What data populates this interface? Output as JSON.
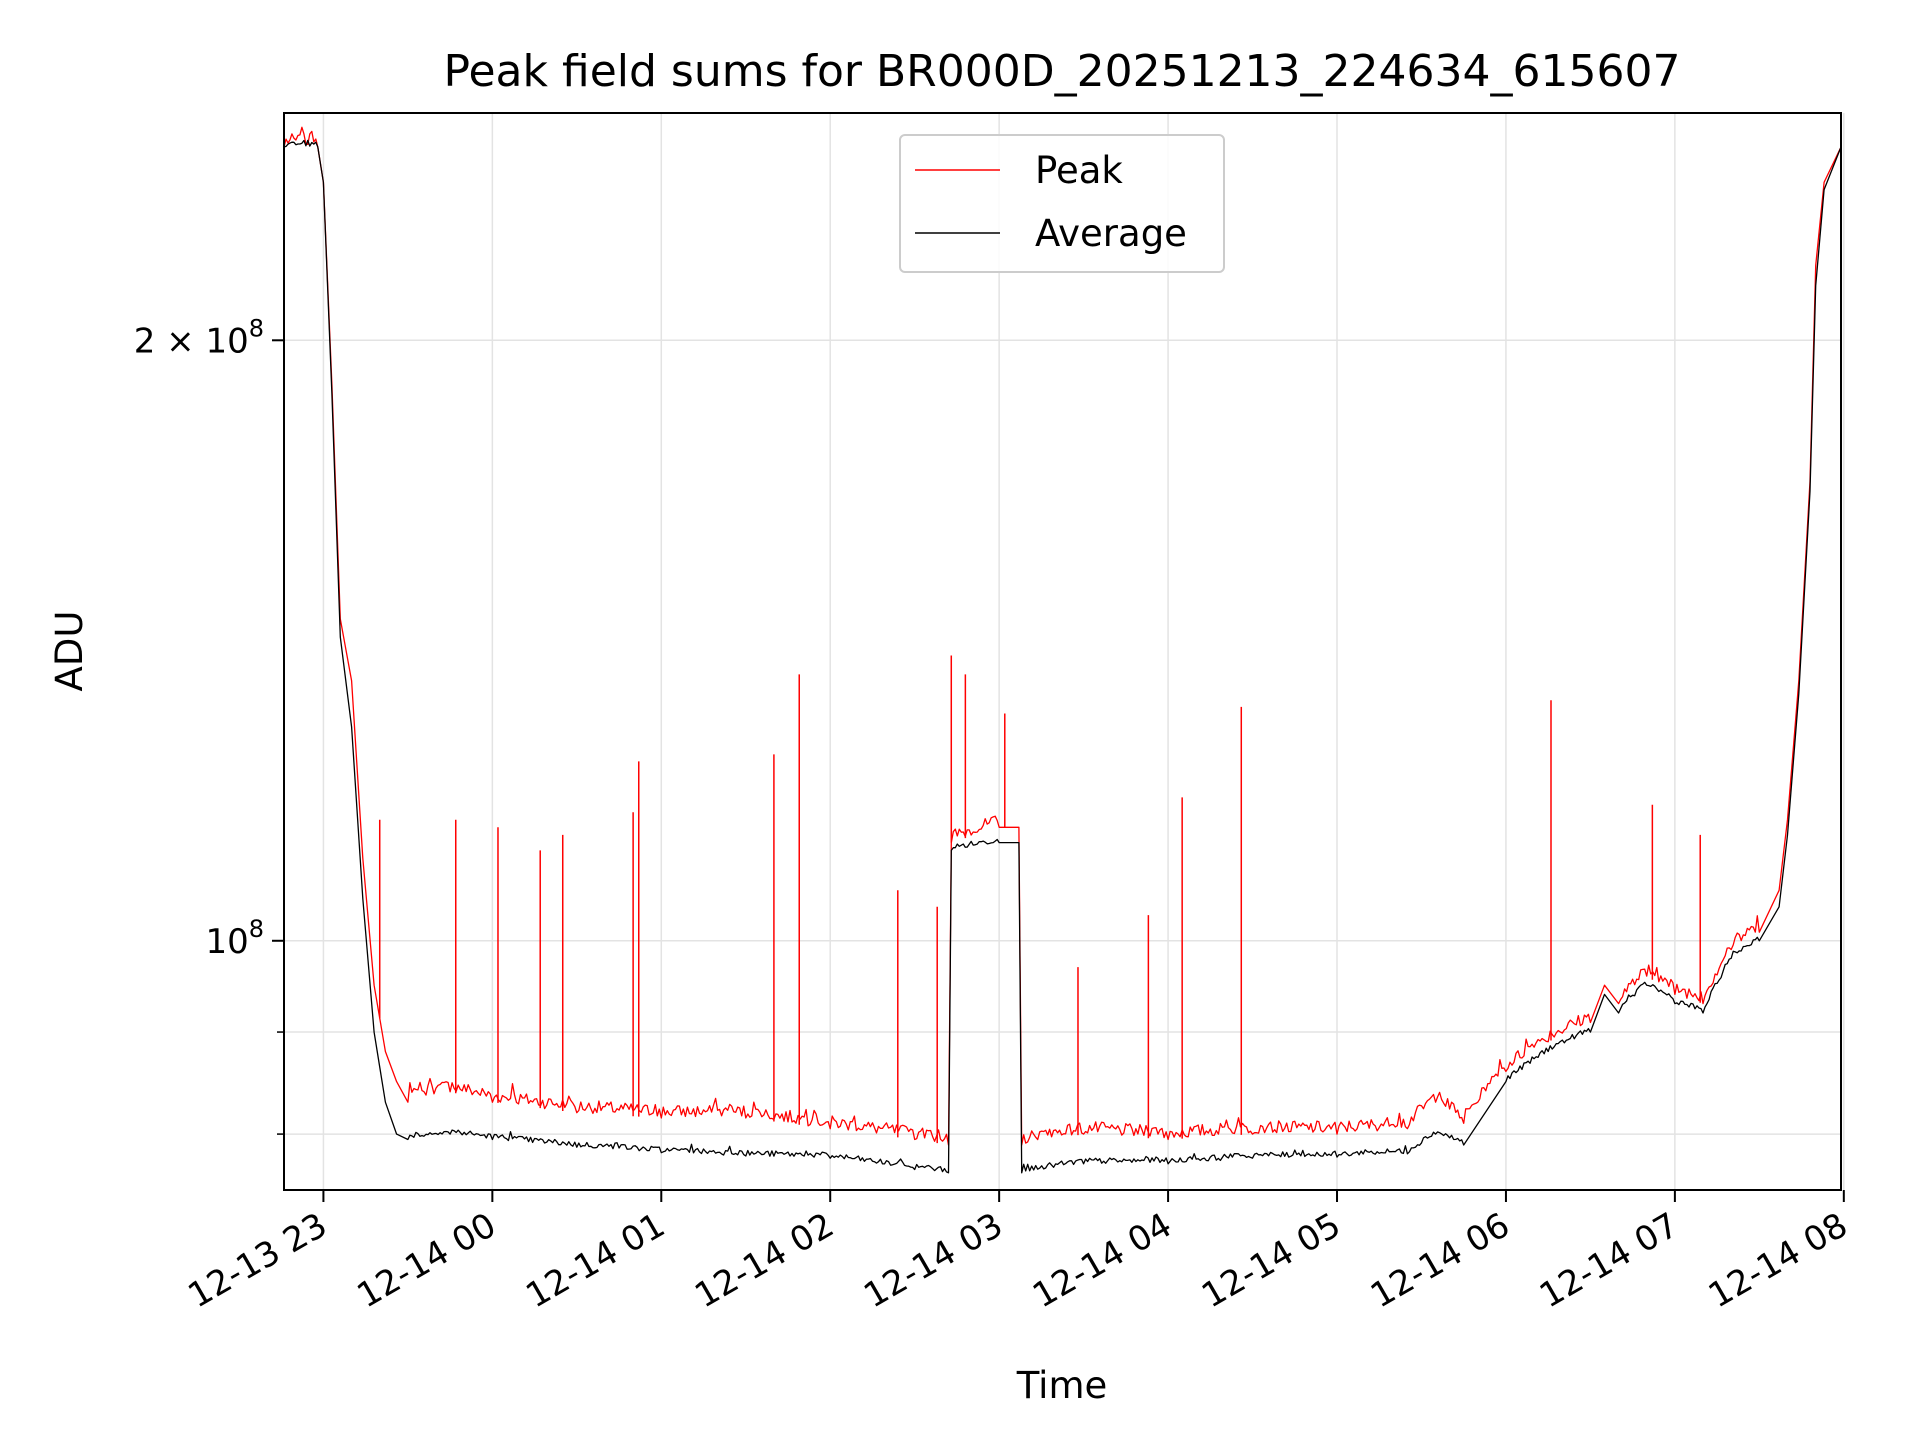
{
  "chart_data": {
    "type": "line",
    "title": "Peak field sums for BR000D_20251213_224634_615607",
    "xlabel": "Time",
    "ylabel": "ADU",
    "y_scale": "log",
    "ylim": [
      75000000,
      260000000
    ],
    "xlim": [
      "2025-12-13 22:46",
      "2025-12-14 07:59"
    ],
    "grid": true,
    "legend_position": "top-center",
    "x_ticks": [
      {
        "t": "2025-12-13 23:00",
        "label": "12-13 23"
      },
      {
        "t": "2025-12-14 00:00",
        "label": "12-14 00"
      },
      {
        "t": "2025-12-14 01:00",
        "label": "12-14 01"
      },
      {
        "t": "2025-12-14 02:00",
        "label": "12-14 02"
      },
      {
        "t": "2025-12-14 03:00",
        "label": "12-14 03"
      },
      {
        "t": "2025-12-14 04:00",
        "label": "12-14 04"
      },
      {
        "t": "2025-12-14 05:00",
        "label": "12-14 05"
      },
      {
        "t": "2025-12-14 06:00",
        "label": "12-14 06"
      },
      {
        "t": "2025-12-14 07:00",
        "label": "12-14 07"
      },
      {
        "t": "2025-12-14 08:00",
        "label": "12-14 08"
      }
    ],
    "y_major_ticks": [
      {
        "value": 100000000,
        "base": "10",
        "exp": "8",
        "coef": ""
      },
      {
        "value": 200000000,
        "base": "10",
        "exp": "8",
        "coef": "2 × "
      }
    ],
    "y_minor_ticks": [
      80000000,
      90000000
    ],
    "series": [
      {
        "name": "Peak",
        "color": "#ff0000",
        "points": [
          [
            "2025-12-13 22:46",
            250000000
          ],
          [
            "2025-12-13 22:58",
            250000000
          ],
          [
            "2025-12-13 23:00",
            240000000
          ],
          [
            "2025-12-13 23:03",
            190000000
          ],
          [
            "2025-12-13 23:06",
            145000000
          ],
          [
            "2025-12-13 23:10",
            135000000
          ],
          [
            "2025-12-13 23:14",
            110000000
          ],
          [
            "2025-12-13 23:18",
            95000000
          ],
          [
            "2025-12-13 23:22",
            88000000
          ],
          [
            "2025-12-13 23:26",
            85000000
          ],
          [
            "2025-12-13 23:30",
            83000000
          ],
          [
            "2025-12-13 23:45",
            84000000
          ],
          [
            "2025-12-14 00:00",
            83000000
          ],
          [
            "2025-12-14 00:30",
            82000000
          ],
          [
            "2025-12-14 01:00",
            81500000
          ],
          [
            "2025-12-14 01:30",
            81500000
          ],
          [
            "2025-12-14 02:00",
            80500000
          ],
          [
            "2025-12-14 02:30",
            79500000
          ],
          [
            "2025-12-14 02:42",
            79000000
          ],
          [
            "2025-12-14 02:43",
            112000000
          ],
          [
            "2025-12-14 03:00",
            114000000
          ],
          [
            "2025-12-14 03:07",
            114000000
          ],
          [
            "2025-12-14 03:08",
            79000000
          ],
          [
            "2025-12-14 03:30",
            80000000
          ],
          [
            "2025-12-14 04:00",
            79500000
          ],
          [
            "2025-12-14 04:30",
            80000000
          ],
          [
            "2025-12-14 05:00",
            80000000
          ],
          [
            "2025-12-14 05:25",
            80500000
          ],
          [
            "2025-12-14 05:35",
            83000000
          ],
          [
            "2025-12-14 05:45",
            81000000
          ],
          [
            "2025-12-14 06:00",
            86000000
          ],
          [
            "2025-12-14 06:15",
            89000000
          ],
          [
            "2025-12-14 06:30",
            91000000
          ],
          [
            "2025-12-14 06:35",
            95000000
          ],
          [
            "2025-12-14 06:40",
            93000000
          ],
          [
            "2025-12-14 06:50",
            96000000
          ],
          [
            "2025-12-14 07:00",
            94000000
          ],
          [
            "2025-12-14 07:10",
            93000000
          ],
          [
            "2025-12-14 07:20",
            99000000
          ],
          [
            "2025-12-14 07:30",
            101000000
          ],
          [
            "2025-12-14 07:37",
            106000000
          ],
          [
            "2025-12-14 07:40",
            115000000
          ],
          [
            "2025-12-14 07:44",
            135000000
          ],
          [
            "2025-12-14 07:48",
            170000000
          ],
          [
            "2025-12-14 07:50",
            218000000
          ],
          [
            "2025-12-14 07:53",
            240000000
          ],
          [
            "2025-12-14 07:59",
            250000000
          ]
        ],
        "spikes": [
          [
            "2025-12-13 23:20",
            115000000
          ],
          [
            "2025-12-13 23:47",
            115000000
          ],
          [
            "2025-12-14 00:02",
            114000000
          ],
          [
            "2025-12-14 00:17",
            111000000
          ],
          [
            "2025-12-14 00:25",
            113000000
          ],
          [
            "2025-12-14 00:50",
            116000000
          ],
          [
            "2025-12-14 00:52",
            123000000
          ],
          [
            "2025-12-14 01:40",
            124000000
          ],
          [
            "2025-12-14 01:49",
            136000000
          ],
          [
            "2025-12-14 02:24",
            106000000
          ],
          [
            "2025-12-14 02:38",
            104000000
          ],
          [
            "2025-12-14 02:43",
            139000000
          ],
          [
            "2025-12-14 02:48",
            136000000
          ],
          [
            "2025-12-14 03:02",
            130000000
          ],
          [
            "2025-12-14 03:28",
            97000000
          ],
          [
            "2025-12-14 03:53",
            103000000
          ],
          [
            "2025-12-14 04:05",
            118000000
          ],
          [
            "2025-12-14 04:26",
            131000000
          ],
          [
            "2025-12-14 06:16",
            132000000
          ],
          [
            "2025-12-14 06:52",
            117000000
          ],
          [
            "2025-12-14 07:09",
            113000000
          ]
        ]
      },
      {
        "name": "Average",
        "color": "#000000",
        "points": [
          [
            "2025-12-13 22:46",
            250000000
          ],
          [
            "2025-12-13 22:58",
            250000000
          ],
          [
            "2025-12-13 23:00",
            240000000
          ],
          [
            "2025-12-13 23:03",
            188000000
          ],
          [
            "2025-12-13 23:06",
            142000000
          ],
          [
            "2025-12-13 23:10",
            128000000
          ],
          [
            "2025-12-13 23:14",
            105000000
          ],
          [
            "2025-12-13 23:18",
            90000000
          ],
          [
            "2025-12-13 23:22",
            83000000
          ],
          [
            "2025-12-13 23:26",
            80000000
          ],
          [
            "2025-12-13 23:30",
            79500000
          ],
          [
            "2025-12-13 23:45",
            80000000
          ],
          [
            "2025-12-14 00:00",
            79500000
          ],
          [
            "2025-12-14 00:30",
            78800000
          ],
          [
            "2025-12-14 01:00",
            78300000
          ],
          [
            "2025-12-14 01:30",
            78000000
          ],
          [
            "2025-12-14 02:00",
            77800000
          ],
          [
            "2025-12-14 02:30",
            76800000
          ],
          [
            "2025-12-14 02:42",
            76500000
          ],
          [
            "2025-12-14 02:43",
            111000000
          ],
          [
            "2025-12-14 03:00",
            112000000
          ],
          [
            "2025-12-14 03:07",
            112000000
          ],
          [
            "2025-12-14 03:08",
            76500000
          ],
          [
            "2025-12-14 03:30",
            77300000
          ],
          [
            "2025-12-14 04:00",
            77300000
          ],
          [
            "2025-12-14 04:30",
            77800000
          ],
          [
            "2025-12-14 05:00",
            77900000
          ],
          [
            "2025-12-14 05:25",
            78200000
          ],
          [
            "2025-12-14 05:35",
            80000000
          ],
          [
            "2025-12-14 05:45",
            79000000
          ],
          [
            "2025-12-14 06:00",
            85000000
          ],
          [
            "2025-12-14 06:15",
            88000000
          ],
          [
            "2025-12-14 06:30",
            90000000
          ],
          [
            "2025-12-14 06:35",
            94000000
          ],
          [
            "2025-12-14 06:40",
            92000000
          ],
          [
            "2025-12-14 06:50",
            95000000
          ],
          [
            "2025-12-14 07:00",
            93000000
          ],
          [
            "2025-12-14 07:10",
            92000000
          ],
          [
            "2025-12-14 07:20",
            98000000
          ],
          [
            "2025-12-14 07:30",
            100000000
          ],
          [
            "2025-12-14 07:37",
            104000000
          ],
          [
            "2025-12-14 07:40",
            113000000
          ],
          [
            "2025-12-14 07:44",
            133000000
          ],
          [
            "2025-12-14 07:48",
            168000000
          ],
          [
            "2025-12-14 07:50",
            213000000
          ],
          [
            "2025-12-14 07:53",
            238000000
          ],
          [
            "2025-12-14 07:59",
            250000000
          ]
        ]
      }
    ]
  }
}
